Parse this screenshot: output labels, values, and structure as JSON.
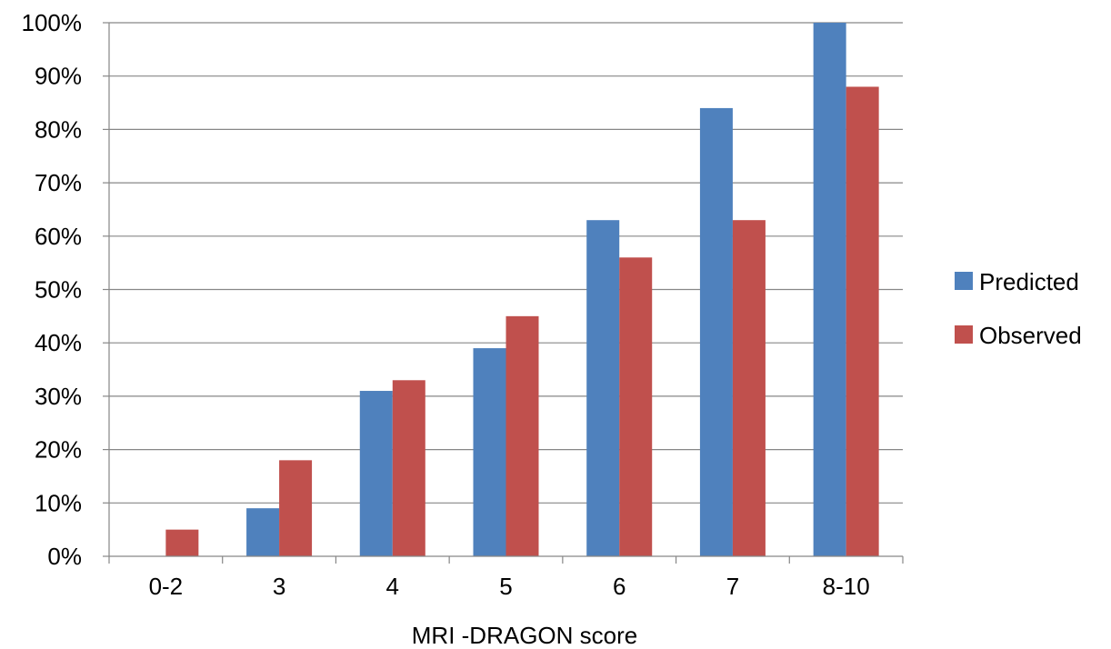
{
  "chart_data": {
    "type": "bar",
    "categories": [
      "0-2",
      "3",
      "4",
      "5",
      "6",
      "7",
      "8-10"
    ],
    "series": [
      {
        "name": "Predicted",
        "color": "#4F81BD",
        "values": [
          0,
          9,
          31,
          39,
          63,
          84,
          100
        ]
      },
      {
        "name": "Observed",
        "color": "#C0504D",
        "values": [
          5,
          18,
          33,
          45,
          56,
          63,
          88
        ]
      }
    ],
    "title": "",
    "xlabel": "MRI -DRAGON score",
    "ylabel": "",
    "ylim": [
      0,
      100
    ],
    "yticks": [
      0,
      10,
      20,
      30,
      40,
      50,
      60,
      70,
      80,
      90,
      100
    ],
    "ytick_suffix": "%",
    "grid": true,
    "legend_position": "right"
  }
}
